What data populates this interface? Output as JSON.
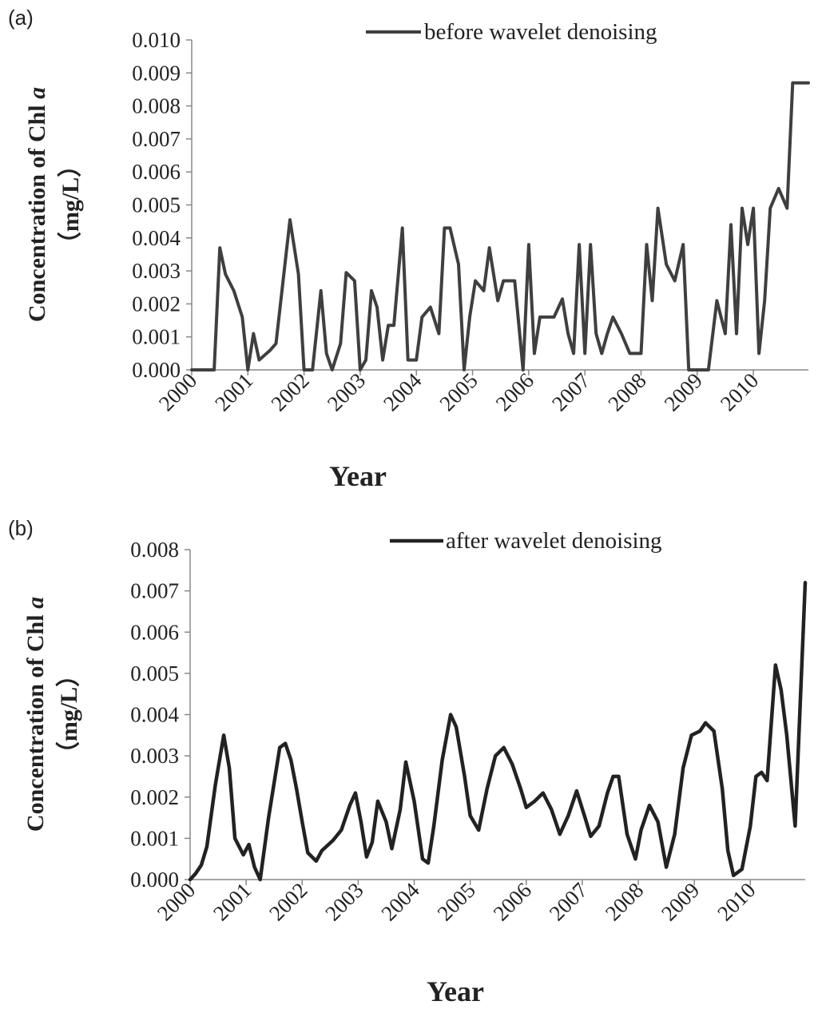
{
  "chart_data": [
    {
      "type": "line",
      "panel_label": "(a)",
      "title": "",
      "xlabel": "Year",
      "ylabel": "Concentration of Chl a",
      "ylabel_parts": [
        "Concentration of Chl ",
        "a"
      ],
      "ylabel_unit": "（mg/L）",
      "ylim": [
        0,
        0.01
      ],
      "yticks": [
        "0.000",
        "0.001",
        "0.002",
        "0.003",
        "0.004",
        "0.005",
        "0.006",
        "0.007",
        "0.008",
        "0.009",
        "0.010"
      ],
      "xticks": [
        "2000",
        "2001",
        "2002",
        "2003",
        "2004",
        "2005",
        "2006",
        "2007",
        "2008",
        "2009",
        "2010"
      ],
      "xlim": [
        2000,
        2010.98
      ],
      "grid": false,
      "legend_position": "top-right",
      "series": [
        {
          "name": "before wavelet denoising",
          "color": "#3f3f3f",
          "x": [
            2000.0,
            2000.2,
            2000.4,
            2000.5,
            2000.6,
            2000.75,
            2000.9,
            2001.0,
            2001.1,
            2001.2,
            2001.4,
            2001.5,
            2001.6,
            2001.75,
            2001.9,
            2002.0,
            2002.15,
            2002.3,
            2002.4,
            2002.5,
            2002.65,
            2002.75,
            2002.9,
            2003.0,
            2003.1,
            2003.2,
            2003.3,
            2003.4,
            2003.5,
            2003.6,
            2003.75,
            2003.85,
            2003.9,
            2004.0,
            2004.1,
            2004.25,
            2004.4,
            2004.5,
            2004.6,
            2004.75,
            2004.85,
            2004.95,
            2005.05,
            2005.2,
            2005.3,
            2005.45,
            2005.55,
            2005.65,
            2005.75,
            2005.9,
            2006.0,
            2006.1,
            2006.2,
            2006.3,
            2006.45,
            2006.6,
            2006.7,
            2006.8,
            2006.9,
            2007.0,
            2007.1,
            2007.2,
            2007.3,
            2007.4,
            2007.5,
            2007.65,
            2007.8,
            2008.0,
            2008.1,
            2008.2,
            2008.3,
            2008.45,
            2008.6,
            2008.75,
            2008.85,
            2009.0,
            2009.1,
            2009.2,
            2009.35,
            2009.5,
            2009.6,
            2009.7,
            2009.8,
            2009.9,
            2010.0,
            2010.1,
            2010.2,
            2010.3,
            2010.45,
            2010.6,
            2010.7,
            2010.85,
            2010.98
          ],
          "values": [
            0.0,
            0.0,
            0.0,
            0.0037,
            0.0029,
            0.0024,
            0.0016,
            0.0,
            0.0011,
            0.0003,
            0.0006,
            0.0008,
            0.0023,
            0.00455,
            0.0029,
            0.0,
            0.0,
            0.0024,
            0.0005,
            0.0,
            0.0008,
            0.00295,
            0.0027,
            0.0,
            0.0003,
            0.0024,
            0.0019,
            0.0003,
            0.00135,
            0.00135,
            0.0043,
            0.0003,
            0.0003,
            0.0003,
            0.0016,
            0.0019,
            0.0011,
            0.0043,
            0.0043,
            0.0032,
            0.0,
            0.0016,
            0.0027,
            0.0024,
            0.0037,
            0.0021,
            0.0027,
            0.0027,
            0.0027,
            0.0,
            0.0038,
            0.0005,
            0.0016,
            0.0016,
            0.0016,
            0.00215,
            0.0011,
            0.0005,
            0.0038,
            0.0005,
            0.0038,
            0.0011,
            0.0005,
            0.0011,
            0.0016,
            0.0011,
            0.0005,
            0.0005,
            0.0038,
            0.0021,
            0.0049,
            0.0032,
            0.0027,
            0.0038,
            0.0,
            0.0,
            0.0,
            0.0,
            0.0021,
            0.0011,
            0.0044,
            0.0011,
            0.0049,
            0.0038,
            0.0049,
            0.0005,
            0.0021,
            0.0049,
            0.0055,
            0.0049,
            0.0087,
            0.0087,
            0.0087
          ]
        }
      ]
    },
    {
      "type": "line",
      "panel_label": "(b)",
      "title": "",
      "xlabel": "Year",
      "ylabel": "Concentration of Chl a",
      "ylabel_parts": [
        "Concentration of Chl ",
        "a"
      ],
      "ylabel_unit": "（mg/L）",
      "ylim": [
        0,
        0.008
      ],
      "yticks": [
        "0.000",
        "0.001",
        "0.002",
        "0.003",
        "0.004",
        "0.005",
        "0.006",
        "0.007",
        "0.008"
      ],
      "xticks": [
        "2000",
        "2001",
        "2002",
        "2003",
        "2004",
        "2005",
        "2006",
        "2007",
        "2008",
        "2009",
        "2010"
      ],
      "xlim": [
        2000,
        2010.98
      ],
      "grid": false,
      "legend_position": "top-right",
      "series": [
        {
          "name": "after wavelet denoising",
          "color": "#222222",
          "x": [
            2000.0,
            2000.1,
            2000.2,
            2000.3,
            2000.45,
            2000.6,
            2000.7,
            2000.8,
            2000.95,
            2001.05,
            2001.15,
            2001.25,
            2001.4,
            2001.6,
            2001.7,
            2001.8,
            2001.9,
            2002.0,
            2002.1,
            2002.25,
            2002.35,
            2002.55,
            2002.7,
            2002.85,
            2002.95,
            2003.05,
            2003.15,
            2003.25,
            2003.35,
            2003.5,
            2003.6,
            2003.75,
            2003.85,
            2004.0,
            2004.15,
            2004.25,
            2004.35,
            2004.5,
            2004.65,
            2004.75,
            2004.9,
            2005.0,
            2005.15,
            2005.3,
            2005.45,
            2005.6,
            2005.75,
            2005.9,
            2006.0,
            2006.15,
            2006.3,
            2006.45,
            2006.6,
            2006.75,
            2006.9,
            2007.05,
            2007.15,
            2007.3,
            2007.45,
            2007.55,
            2007.65,
            2007.8,
            2007.95,
            2008.05,
            2008.2,
            2008.35,
            2008.5,
            2008.65,
            2008.8,
            2008.95,
            2009.1,
            2009.2,
            2009.35,
            2009.5,
            2009.6,
            2009.7,
            2009.85,
            2010.0,
            2010.1,
            2010.2,
            2010.3,
            2010.45,
            2010.55,
            2010.65,
            2010.8,
            2010.98
          ],
          "values": [
            0.0,
            0.00015,
            0.00035,
            0.0008,
            0.0023,
            0.0035,
            0.0027,
            0.001,
            0.0006,
            0.00085,
            0.0003,
            0.0,
            0.0015,
            0.0032,
            0.0033,
            0.0029,
            0.0022,
            0.0014,
            0.00065,
            0.00045,
            0.0007,
            0.00095,
            0.0012,
            0.0018,
            0.0021,
            0.0014,
            0.00055,
            0.0009,
            0.0019,
            0.0014,
            0.00075,
            0.0017,
            0.00285,
            0.0019,
            0.0005,
            0.0004,
            0.0013,
            0.0029,
            0.004,
            0.0037,
            0.0025,
            0.00155,
            0.0012,
            0.0022,
            0.003,
            0.0032,
            0.0028,
            0.0022,
            0.00175,
            0.0019,
            0.0021,
            0.0017,
            0.0011,
            0.00155,
            0.00215,
            0.0015,
            0.00105,
            0.0013,
            0.0021,
            0.0025,
            0.0025,
            0.0011,
            0.0005,
            0.0012,
            0.0018,
            0.0014,
            0.0003,
            0.0011,
            0.0027,
            0.0035,
            0.0036,
            0.0038,
            0.0036,
            0.0022,
            0.0007,
            0.0001,
            0.00025,
            0.0013,
            0.0025,
            0.0026,
            0.0024,
            0.0052,
            0.0046,
            0.0035,
            0.0013,
            0.0072
          ]
        }
      ]
    }
  ]
}
